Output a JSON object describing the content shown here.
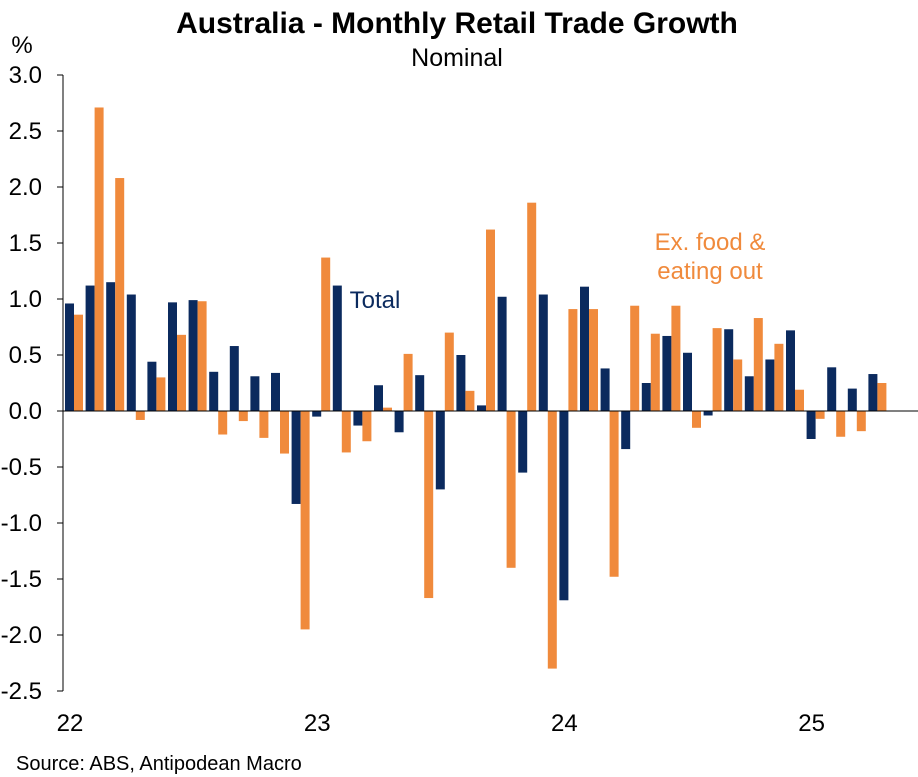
{
  "chart_data": {
    "type": "bar",
    "title": "Australia - Monthly Retail Trade Growth",
    "subtitle": "Nominal",
    "ylabel": "%",
    "ylim": [
      -2.5,
      3.0
    ],
    "yticks": [
      3.0,
      2.5,
      2.0,
      1.5,
      1.0,
      0.5,
      0.0,
      -0.5,
      -1.0,
      -1.5,
      -2.0,
      -2.5
    ],
    "ytick_labels": [
      "3.0",
      "2.5",
      "2.0",
      "1.5",
      "1.0",
      "0.5",
      "0.0",
      "-0.5",
      "-1.0",
      "-1.5",
      "-2.0",
      "-2.5"
    ],
    "categories": [
      "Jan 2022",
      "Feb 2022",
      "Mar 2022",
      "Apr 2022",
      "May 2022",
      "Jun 2022",
      "Jul 2022",
      "Aug 2022",
      "Sep 2022",
      "Oct 2022",
      "Nov 2022",
      "Dec 2022",
      "Jan 2023",
      "Feb 2023",
      "Mar 2023",
      "Apr 2023",
      "May 2023",
      "Jun 2023",
      "Jul 2023",
      "Aug 2023",
      "Sep 2023",
      "Oct 2023",
      "Nov 2023",
      "Dec 2023",
      "Jan 2024",
      "Feb 2024",
      "Mar 2024",
      "Apr 2024",
      "May 2024",
      "Jun 2024",
      "Jul 2024",
      "Aug 2024",
      "Sep 2024",
      "Oct 2024",
      "Nov 2024",
      "Dec 2024",
      "Jan 2025",
      "Feb 2025",
      "Mar 2025",
      "Apr 2025"
    ],
    "x_tick_labels": [
      {
        "label": "22",
        "category_index": 0
      },
      {
        "label": "23",
        "category_index": 12
      },
      {
        "label": "24",
        "category_index": 24
      },
      {
        "label": "25",
        "category_index": 36
      }
    ],
    "series": [
      {
        "key": "total",
        "color": "#0b2a5e",
        "values": [
          0.96,
          1.12,
          1.15,
          1.04,
          0.44,
          0.97,
          0.99,
          0.35,
          0.58,
          0.31,
          0.34,
          -0.83,
          -0.05,
          1.12,
          -0.13,
          0.23,
          -0.19,
          0.32,
          -0.7,
          0.5,
          0.05,
          1.02,
          -0.55,
          1.04,
          -1.69,
          1.11,
          0.38,
          -0.34,
          0.25,
          0.67,
          0.52,
          -0.04,
          0.73,
          0.31,
          0.46,
          0.72,
          -0.25,
          0.39,
          0.2,
          0.33
        ]
      },
      {
        "key": "ex_food",
        "color": "#f08a3c",
        "values": [
          0.86,
          2.71,
          2.08,
          -0.08,
          0.3,
          0.68,
          0.98,
          -0.21,
          -0.09,
          -0.24,
          -0.38,
          -1.95,
          1.37,
          -0.37,
          -0.27,
          0.03,
          0.51,
          -1.67,
          0.7,
          0.18,
          1.62,
          -1.4,
          1.86,
          -2.3,
          0.91,
          0.91,
          -1.48,
          0.94,
          0.69,
          0.94,
          -0.15,
          0.74,
          0.46,
          0.83,
          0.6,
          0.19,
          -0.07,
          -0.23,
          -0.18,
          0.25
        ]
      }
    ],
    "annotations": [
      {
        "key": "total",
        "lines": [
          "Total"
        ],
        "color": "#0b2a5e"
      },
      {
        "key": "ex_food",
        "lines": [
          "Ex. food &",
          "eating out"
        ],
        "color": "#f08a3c"
      }
    ],
    "grid": false,
    "legend": "none"
  },
  "source": "Source: ABS, Antipodean Macro"
}
